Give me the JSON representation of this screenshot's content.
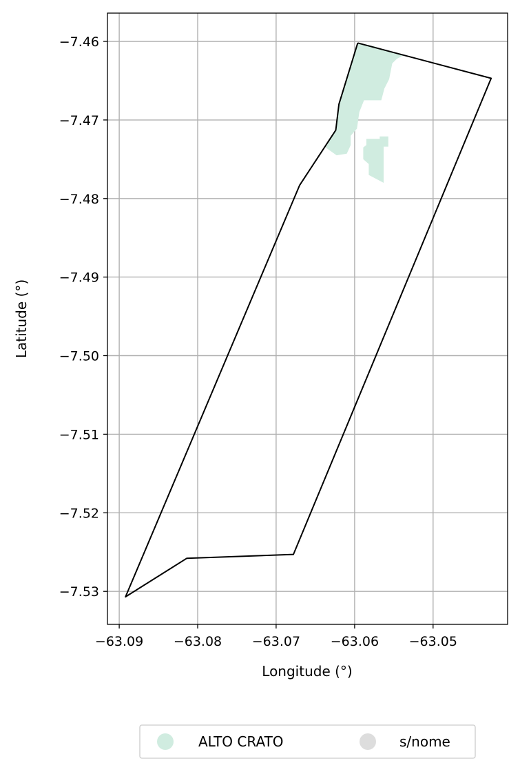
{
  "chart_data": {
    "type": "map",
    "xlabel": "Longitude (°)",
    "ylabel": "Latitude (°)",
    "xlim": [
      -63.0915,
      -63.0405
    ],
    "ylim": [
      -7.5342,
      -7.4564
    ],
    "x_ticks": [
      -63.09,
      -63.08,
      -63.07,
      -63.06,
      -63.05
    ],
    "y_ticks": [
      -7.46,
      -7.47,
      -7.48,
      -7.49,
      -7.5,
      -7.51,
      -7.52,
      -7.53
    ],
    "x_tick_labels": [
      "−63.09",
      "−63.08",
      "−63.07",
      "−63.06",
      "−63.05"
    ],
    "y_tick_labels": [
      "−7.46",
      "−7.47",
      "−7.48",
      "−7.49",
      "−7.50",
      "−7.51",
      "−7.52",
      "−7.53"
    ],
    "grid": true,
    "boundary": {
      "stroke": "#000000",
      "points": [
        [
          -63.0596,
          -7.4602
        ],
        [
          -63.0426,
          -7.4647
        ],
        [
          -63.0678,
          -7.5253
        ],
        [
          -63.0814,
          -7.5258
        ],
        [
          -63.0892,
          -7.5307
        ],
        [
          -63.067,
          -7.4783
        ],
        [
          -63.0624,
          -7.4713
        ],
        [
          -63.062,
          -7.468
        ],
        [
          -63.0596,
          -7.4602
        ]
      ]
    },
    "regions": [
      {
        "name": "ALTO CRATO",
        "color": "#d0ece0",
        "polygons": [
          [
            [
              -63.0596,
              -7.4602
            ],
            [
              -63.0576,
              -7.4606
            ],
            [
              -63.0558,
              -7.4612
            ],
            [
              -63.0538,
              -7.4618
            ],
            [
              -63.0546,
              -7.4622
            ],
            [
              -63.0552,
              -7.4628
            ],
            [
              -63.0556,
              -7.4648
            ],
            [
              -63.0562,
              -7.466
            ],
            [
              -63.0566,
              -7.4675
            ],
            [
              -63.0575,
              -7.4675
            ],
            [
              -63.0588,
              -7.4675
            ],
            [
              -63.0594,
              -7.469
            ],
            [
              -63.0597,
              -7.4711
            ],
            [
              -63.0605,
              -7.472
            ],
            [
              -63.0605,
              -7.4732
            ],
            [
              -63.061,
              -7.4743
            ],
            [
              -63.0623,
              -7.4745
            ],
            [
              -63.0637,
              -7.4735
            ],
            [
              -63.0624,
              -7.4713
            ],
            [
              -63.062,
              -7.468
            ],
            [
              -63.0596,
              -7.4602
            ]
          ],
          [
            [
              -63.0557,
              -7.4721
            ],
            [
              -63.0557,
              -7.4734
            ],
            [
              -63.0563,
              -7.4734
            ],
            [
              -63.0563,
              -7.478
            ],
            [
              -63.0582,
              -7.477
            ],
            [
              -63.0582,
              -7.4756
            ],
            [
              -63.0589,
              -7.475
            ],
            [
              -63.0589,
              -7.4735
            ],
            [
              -63.0585,
              -7.4732
            ],
            [
              -63.0585,
              -7.4724
            ],
            [
              -63.0568,
              -7.4724
            ],
            [
              -63.0568,
              -7.4721
            ]
          ]
        ]
      }
    ],
    "legend": {
      "placement": "bottom-center",
      "entries": [
        {
          "label": "ALTO CRATO",
          "color": "#d0ece0"
        },
        {
          "label": "s/nome",
          "color": "#dddddd"
        }
      ]
    }
  }
}
